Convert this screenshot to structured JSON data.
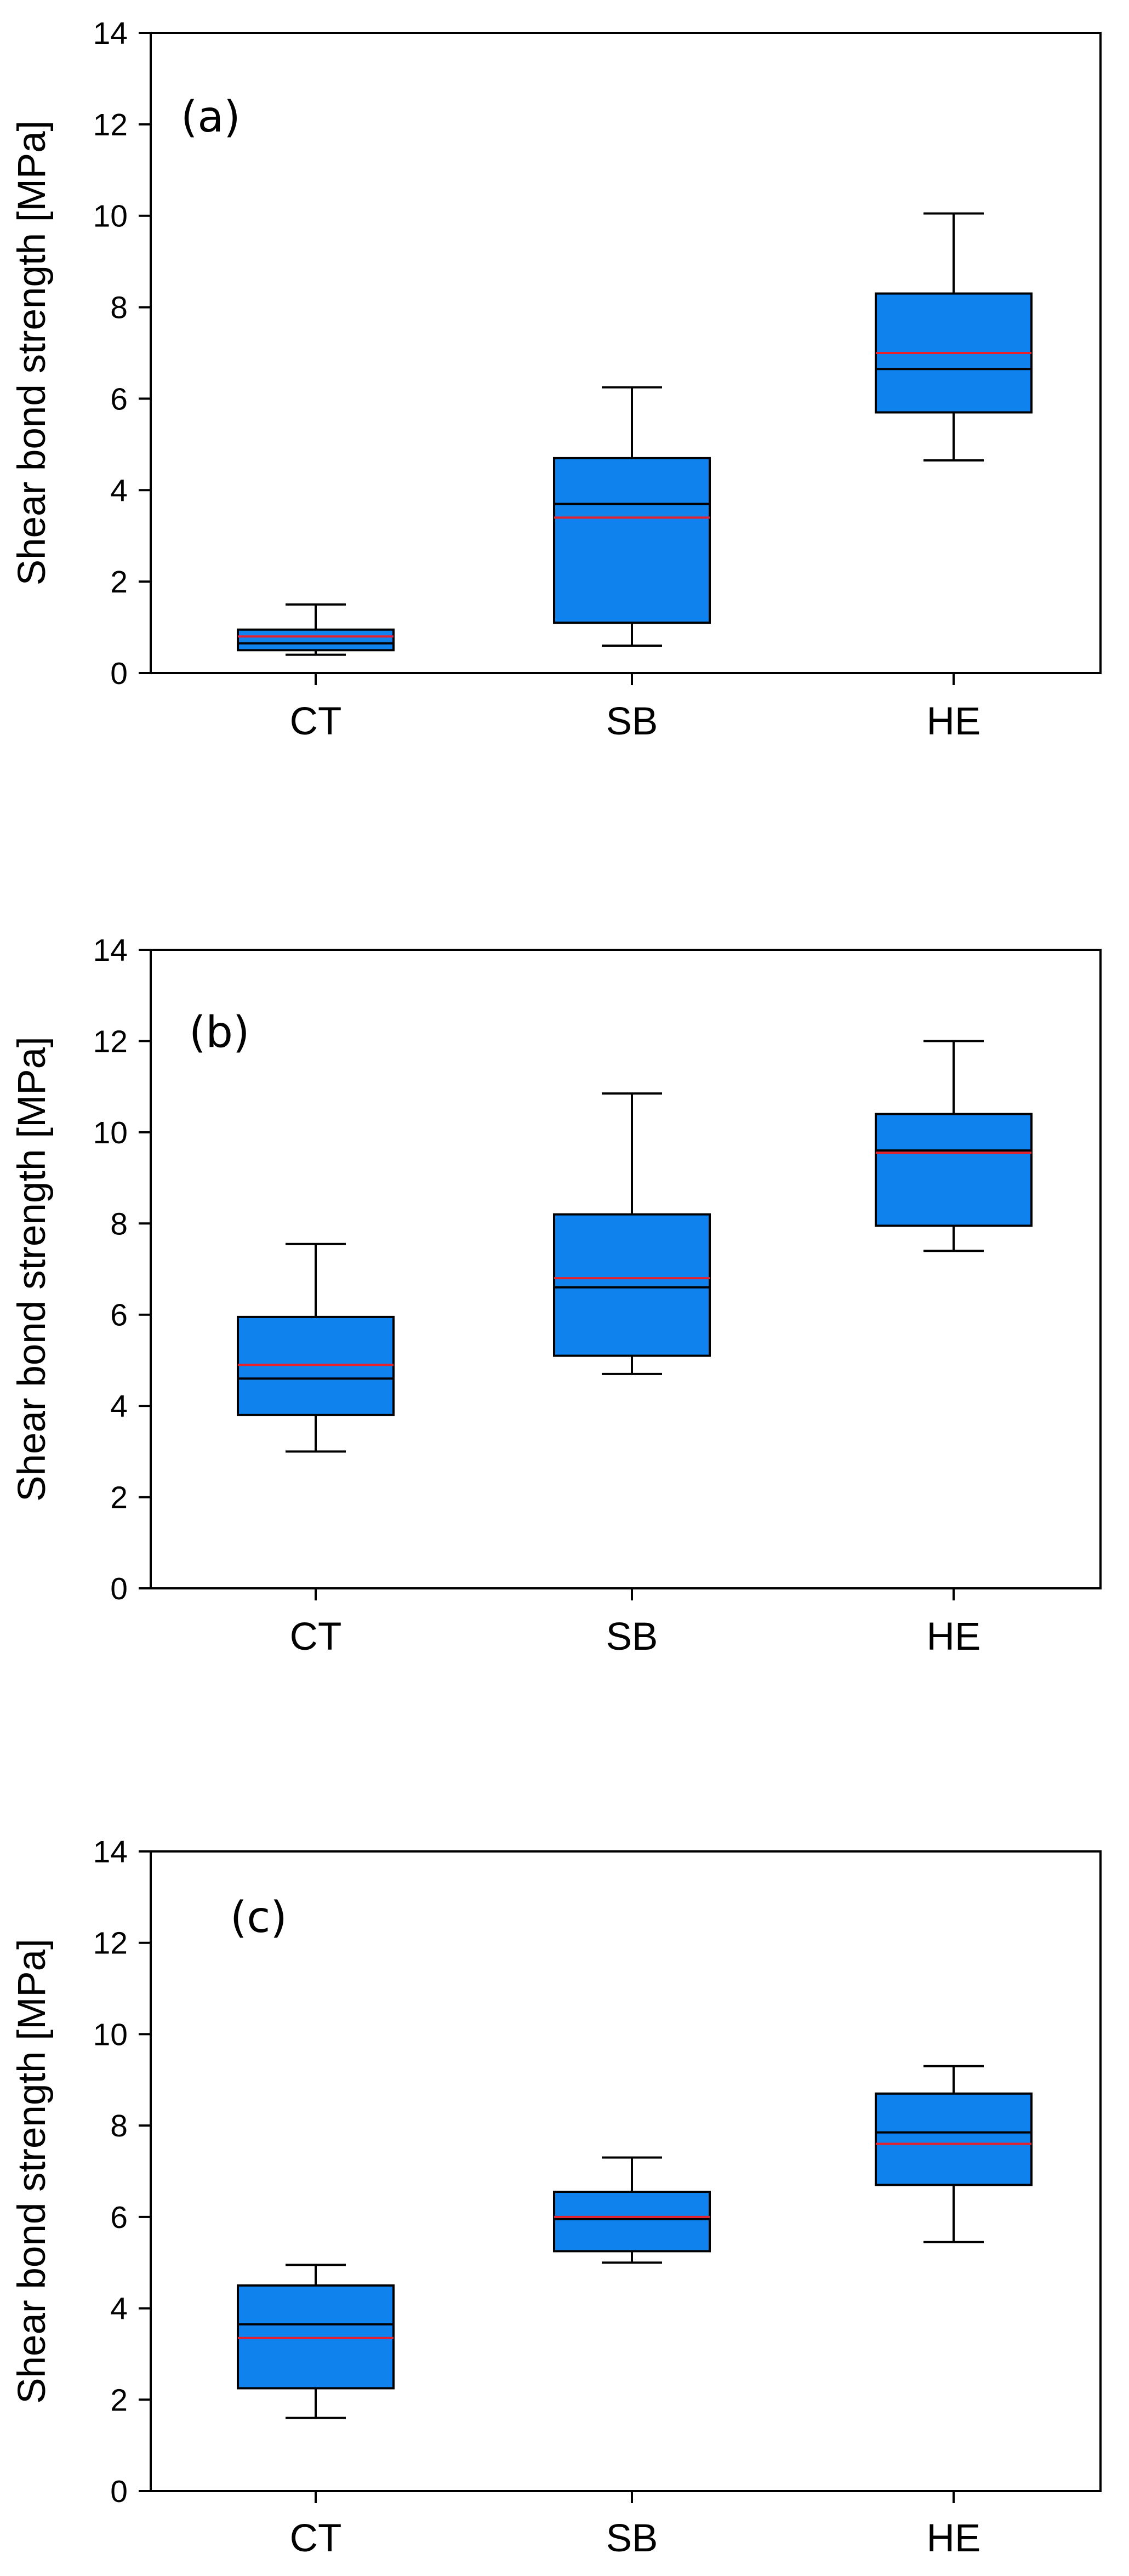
{
  "figure": {
    "box_fill": "#0f82ee",
    "box_stroke": "#000000",
    "median_color": "#000000",
    "mean_color": "#e5212d",
    "frame_color": "#000000"
  },
  "chart_data": [
    {
      "type": "box",
      "panel_label": "(a)",
      "title": "",
      "xlabel": "",
      "ylabel": "Shear bond strength [MPa]",
      "ylim": [
        0,
        14
      ],
      "yticks": [
        0,
        2,
        4,
        6,
        8,
        10,
        12,
        14
      ],
      "grid": false,
      "categories": [
        "CT",
        "SB",
        "HE"
      ],
      "boxes": [
        {
          "category": "CT",
          "whisker_low": 0.4,
          "q1": 0.5,
          "median": 0.65,
          "mean": 0.8,
          "q3": 0.95,
          "whisker_high": 1.5
        },
        {
          "category": "SB",
          "whisker_low": 0.6,
          "q1": 1.1,
          "median": 3.7,
          "mean": 3.4,
          "q3": 4.7,
          "whisker_high": 6.25
        },
        {
          "category": "HE",
          "whisker_low": 4.65,
          "q1": 5.7,
          "median": 6.65,
          "mean": 7.0,
          "q3": 8.3,
          "whisker_high": 10.05
        }
      ]
    },
    {
      "type": "box",
      "panel_label": "(b)",
      "title": "",
      "xlabel": "",
      "ylabel": "Shear bond strength [MPa]",
      "ylim": [
        0,
        14
      ],
      "yticks": [
        0,
        2,
        4,
        6,
        8,
        10,
        12,
        14
      ],
      "grid": false,
      "categories": [
        "CT",
        "SB",
        "HE"
      ],
      "boxes": [
        {
          "category": "CT",
          "whisker_low": 3.0,
          "q1": 3.8,
          "median": 4.6,
          "mean": 4.9,
          "q3": 5.95,
          "whisker_high": 7.55
        },
        {
          "category": "SB",
          "whisker_low": 4.7,
          "q1": 5.1,
          "median": 6.6,
          "mean": 6.8,
          "q3": 8.2,
          "whisker_high": 10.85
        },
        {
          "category": "HE",
          "whisker_low": 7.4,
          "q1": 7.95,
          "median": 9.6,
          "mean": 9.55,
          "q3": 10.4,
          "whisker_high": 12.0
        }
      ]
    },
    {
      "type": "box",
      "panel_label": "(c)",
      "title": "",
      "xlabel": "",
      "ylabel": "Shear bond strength [MPa]",
      "ylim": [
        0,
        14
      ],
      "yticks": [
        0,
        2,
        4,
        6,
        8,
        10,
        12,
        14
      ],
      "grid": false,
      "categories": [
        "CT",
        "SB",
        "HE"
      ],
      "boxes": [
        {
          "category": "CT",
          "whisker_low": 1.6,
          "q1": 2.25,
          "median": 3.65,
          "mean": 3.35,
          "q3": 4.5,
          "whisker_high": 4.95
        },
        {
          "category": "SB",
          "whisker_low": 5.0,
          "q1": 5.25,
          "median": 5.95,
          "mean": 6.0,
          "q3": 6.55,
          "whisker_high": 7.3
        },
        {
          "category": "HE",
          "whisker_low": 5.45,
          "q1": 6.7,
          "median": 7.85,
          "mean": 7.6,
          "q3": 8.7,
          "whisker_high": 9.3
        }
      ]
    }
  ]
}
